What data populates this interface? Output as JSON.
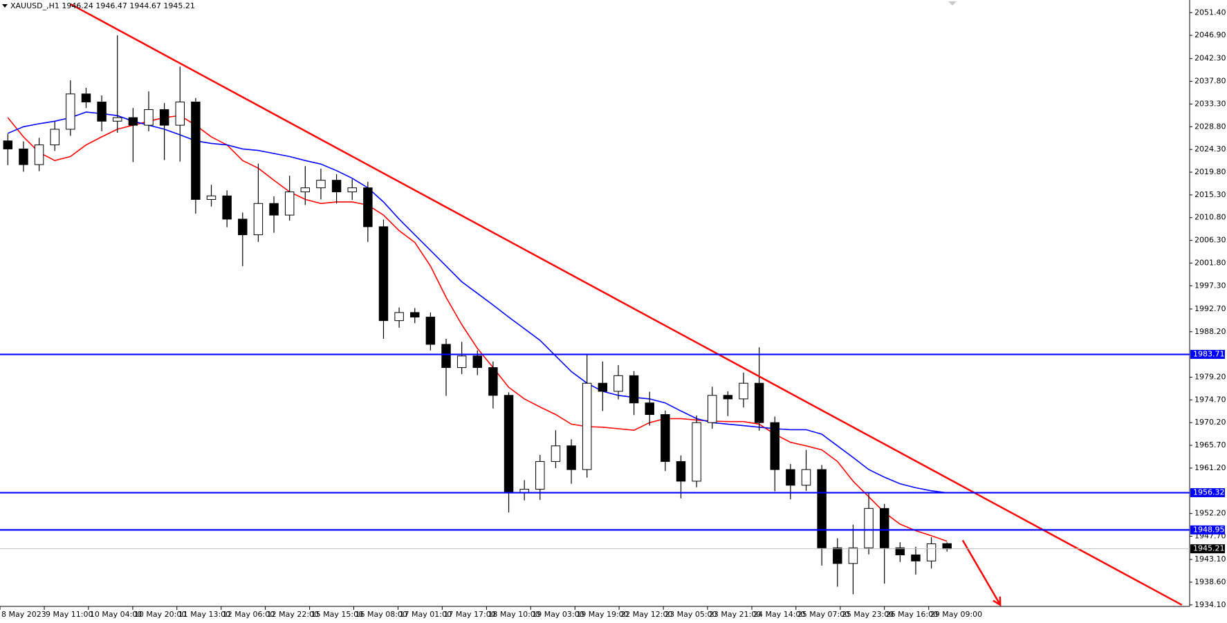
{
  "chart_data": {
    "type": "candlestick",
    "title": "XAUUSD_,H1  1946.24 1946.47 1944.67 1945.21",
    "xlim": [
      -0.5,
      75.5
    ],
    "ylim": [
      1933.8,
      2053.9
    ],
    "up_color": "#ffffff",
    "down_color": "#000000",
    "outline_color": "#000000",
    "open": [
      2026.0,
      2024.4,
      2021.3,
      2025.2,
      2028.3,
      2035.3,
      2033.7,
      2029.9,
      2030.6,
      2029.1,
      2032.2,
      2029.1,
      2033.7,
      2014.4,
      2015.1,
      2010.5,
      2007.4,
      2013.6,
      2011.3,
      2015.9,
      2016.7,
      2018.2,
      2015.9,
      2016.7,
      2009.0,
      1990.4,
      1992.0,
      1991.1,
      1985.7,
      1981.1,
      1983.4,
      1981.1,
      1975.6,
      1956.3,
      1957.0,
      1962.5,
      1965.6,
      1960.9,
      1978.0,
      1976.4,
      1979.5,
      1974.1,
      1971.8,
      1962.5,
      1958.6,
      1970.2,
      1975.6,
      1974.9,
      1978.0,
      1970.2,
      1960.9,
      1957.8,
      1960.9,
      1945.4,
      1942.3,
      1945.4,
      1953.2,
      1945.4,
      1944.0,
      1942.8,
      1946.24
    ],
    "high": [
      2027.4,
      2025.9,
      2026.6,
      2029.8,
      2038.0,
      2036.5,
      2035.0,
      2046.9,
      2032.5,
      2035.8,
      2033.5,
      2040.7,
      2034.5,
      2017.3,
      2016.2,
      2011.8,
      2021.5,
      2015.0,
      2019.1,
      2021.0,
      2020.5,
      2019.4,
      2018.4,
      2017.9,
      2010.4,
      1993.0,
      1992.9,
      1992.0,
      1986.8,
      1986.2,
      1984.5,
      1982.3,
      1976.2,
      1958.8,
      1963.8,
      1968.7,
      1966.9,
      1983.7,
      1982.3,
      1981.6,
      1980.4,
      1976.3,
      1972.6,
      1963.7,
      1971.6,
      1977.3,
      1976.4,
      1980.1,
      1985.1,
      1971.4,
      1962.0,
      1964.8,
      1961.8,
      1947.3,
      1950.0,
      1956.4,
      1954.1,
      1946.5,
      1945.6,
      1947.5,
      1946.47
    ],
    "low": [
      2021.2,
      2019.9,
      2020.0,
      2024.0,
      2027.0,
      2032.5,
      2027.9,
      2027.6,
      2021.8,
      2027.9,
      2022.2,
      2021.9,
      2011.6,
      2013.0,
      2008.9,
      2001.2,
      2006.0,
      2007.8,
      2010.2,
      2013.3,
      2014.4,
      2013.6,
      2014.3,
      2006.0,
      1986.8,
      1989.0,
      1989.9,
      1984.5,
      1975.5,
      1979.8,
      1979.6,
      1973.0,
      1952.4,
      1954.8,
      1954.9,
      1961.2,
      1958.1,
      1959.3,
      1972.5,
      1974.8,
      1971.7,
      1969.6,
      1960.6,
      1955.2,
      1957.4,
      1969.0,
      1971.5,
      1973.2,
      1968.6,
      1956.6,
      1955.0,
      1956.7,
      1941.9,
      1937.7,
      1936.2,
      1944.1,
      1938.3,
      1942.6,
      1940.1,
      1941.3,
      1944.67
    ],
    "close": [
      2024.4,
      2021.3,
      2025.2,
      2028.3,
      2035.3,
      2033.7,
      2029.9,
      2030.6,
      2029.1,
      2032.2,
      2029.1,
      2033.7,
      2014.4,
      2015.1,
      2010.5,
      2007.4,
      2013.6,
      2011.3,
      2015.9,
      2016.7,
      2018.2,
      2015.9,
      2016.7,
      2009.0,
      1990.4,
      1992.0,
      1991.1,
      1985.7,
      1981.1,
      1983.4,
      1981.1,
      1975.6,
      1956.3,
      1957.0,
      1962.5,
      1965.6,
      1960.9,
      1978.0,
      1976.4,
      1979.5,
      1974.1,
      1971.8,
      1962.5,
      1958.6,
      1970.2,
      1975.6,
      1974.9,
      1978.0,
      1970.2,
      1960.9,
      1957.8,
      1960.9,
      1945.4,
      1942.3,
      1945.4,
      1953.2,
      1945.4,
      1944.0,
      1942.8,
      1946.2,
      1945.21
    ],
    "lines": [
      {
        "color": "#ff0000",
        "values": [
          2030.6,
          2026.8,
          2023.7,
          2022.1,
          2022.9,
          2025.2,
          2026.8,
          2028.3,
          2029.1,
          2029.9,
          2030.6,
          2031.0,
          2029.1,
          2026.8,
          2025.2,
          2022.1,
          2020.6,
          2018.2,
          2015.9,
          2014.4,
          2013.6,
          2013.9,
          2013.9,
          2013.3,
          2011.3,
          2008.2,
          2005.9,
          2001.2,
          1995.0,
          1989.6,
          1984.9,
          1981.1,
          1977.2,
          1974.9,
          1973.3,
          1971.8,
          1969.9,
          1969.4,
          1969.3,
          1969.0,
          1968.7,
          1970.2,
          1971.0,
          1971.0,
          1970.7,
          1970.5,
          1970.4,
          1970.4,
          1969.9,
          1967.9,
          1966.3,
          1965.6,
          1964.8,
          1962.5,
          1958.6,
          1955.5,
          1952.4,
          1950.1,
          1948.8,
          1947.8,
          1946.7
        ]
      },
      {
        "color": "#0000ff",
        "values": [
          2027.5,
          2028.8,
          2029.4,
          2029.9,
          2030.6,
          2031.7,
          2031.4,
          2031.0,
          2029.9,
          2029.1,
          2028.3,
          2027.2,
          2026.0,
          2025.5,
          2025.2,
          2024.4,
          2024.1,
          2023.5,
          2022.9,
          2022.1,
          2021.4,
          2020.1,
          2018.6,
          2016.7,
          2013.9,
          2010.5,
          2007.4,
          2004.3,
          2001.2,
          1998.1,
          1995.8,
          1993.5,
          1991.1,
          1988.8,
          1986.5,
          1983.4,
          1980.3,
          1978.0,
          1976.4,
          1975.6,
          1975.2,
          1974.9,
          1974.1,
          1972.5,
          1971.0,
          1970.2,
          1969.9,
          1969.6,
          1969.3,
          1969.0,
          1968.8,
          1968.8,
          1967.9,
          1965.6,
          1963.3,
          1960.9,
          1959.4,
          1958.1,
          1957.3,
          1956.7,
          1956.3
        ]
      }
    ],
    "trendlines": [
      {
        "color": "#ff0000",
        "x": [
          4.0,
          75.0
        ],
        "values": [
          2053.1,
          1934.1
        ]
      }
    ],
    "arrows": [
      {
        "color": "#ff0000",
        "x": [
          61.0,
          63.4
        ],
        "values": [
          1946.9,
          1934.1
        ]
      }
    ],
    "levels": [
      {
        "value": 1983.71,
        "color": "#0000ff",
        "label_fill": "#0000ff"
      },
      {
        "value": 1956.32,
        "color": "#0000ff",
        "label_fill": "#0000ff"
      },
      {
        "value": 1948.95,
        "color": "#0000ff",
        "label_fill": "#0000ff"
      },
      {
        "value": 1945.21,
        "color": "#c0c0c0",
        "label_fill": "#000000"
      }
    ],
    "yticks": [
      {
        "value": 2051.4,
        "label": "2051.40"
      },
      {
        "value": 2046.9,
        "label": "2046.90"
      },
      {
        "value": 2042.3,
        "label": "2042.30"
      },
      {
        "value": 2037.8,
        "label": "2037.80"
      },
      {
        "value": 2033.3,
        "label": "2033.30"
      },
      {
        "value": 2028.8,
        "label": "2028.80"
      },
      {
        "value": 2024.3,
        "label": "2024.30"
      },
      {
        "value": 2019.8,
        "label": "2019.80"
      },
      {
        "value": 2015.3,
        "label": "2015.30"
      },
      {
        "value": 2010.8,
        "label": "2010.80"
      },
      {
        "value": 2006.3,
        "label": "2006.30"
      },
      {
        "value": 2001.8,
        "label": "2001.80"
      },
      {
        "value": 1997.3,
        "label": "1997.30"
      },
      {
        "value": 1992.7,
        "label": "1992.70"
      },
      {
        "value": 1988.2,
        "label": "1988.20"
      },
      {
        "value": 1979.2,
        "label": "1979.20"
      },
      {
        "value": 1974.7,
        "label": "1974.70"
      },
      {
        "value": 1970.2,
        "label": "1970.20"
      },
      {
        "value": 1965.7,
        "label": "1965.70"
      },
      {
        "value": 1961.2,
        "label": "1961.20"
      },
      {
        "value": 1952.2,
        "label": "1952.20"
      },
      {
        "value": 1947.7,
        "label": "1947.70"
      },
      {
        "value": 1943.1,
        "label": "1943.10"
      },
      {
        "value": 1938.6,
        "label": "1938.60"
      },
      {
        "value": 1934.1,
        "label": "1934.10"
      }
    ],
    "xticks": [
      {
        "value": -0.5,
        "label": "8 May 2023"
      },
      {
        "value": 2.33,
        "label": "9 May 11:00"
      },
      {
        "value": 5.15,
        "label": "10 May 04:00"
      },
      {
        "value": 7.98,
        "label": "10 May 20:00"
      },
      {
        "value": 10.8,
        "label": "11 May 13:00"
      },
      {
        "value": 13.63,
        "label": "12 May 06:00"
      },
      {
        "value": 16.45,
        "label": "12 May 22:00"
      },
      {
        "value": 19.28,
        "label": "15 May 15:00"
      },
      {
        "value": 22.1,
        "label": "16 May 08:00"
      },
      {
        "value": 24.93,
        "label": "17 May 01:00"
      },
      {
        "value": 27.75,
        "label": "17 May 17:00"
      },
      {
        "value": 30.58,
        "label": "18 May 10:00"
      },
      {
        "value": 33.4,
        "label": "19 May 03:00"
      },
      {
        "value": 36.23,
        "label": "19 May 19:00"
      },
      {
        "value": 39.05,
        "label": "22 May 12:00"
      },
      {
        "value": 41.88,
        "label": "23 May 05:00"
      },
      {
        "value": 44.7,
        "label": "23 May 21:00"
      },
      {
        "value": 47.53,
        "label": "24 May 14:00"
      },
      {
        "value": 50.35,
        "label": "25 May 07:00"
      },
      {
        "value": 53.18,
        "label": "25 May 23:00"
      },
      {
        "value": 56.0,
        "label": "26 May 16:00"
      },
      {
        "value": 58.83,
        "label": "29 May 09:00"
      }
    ]
  }
}
